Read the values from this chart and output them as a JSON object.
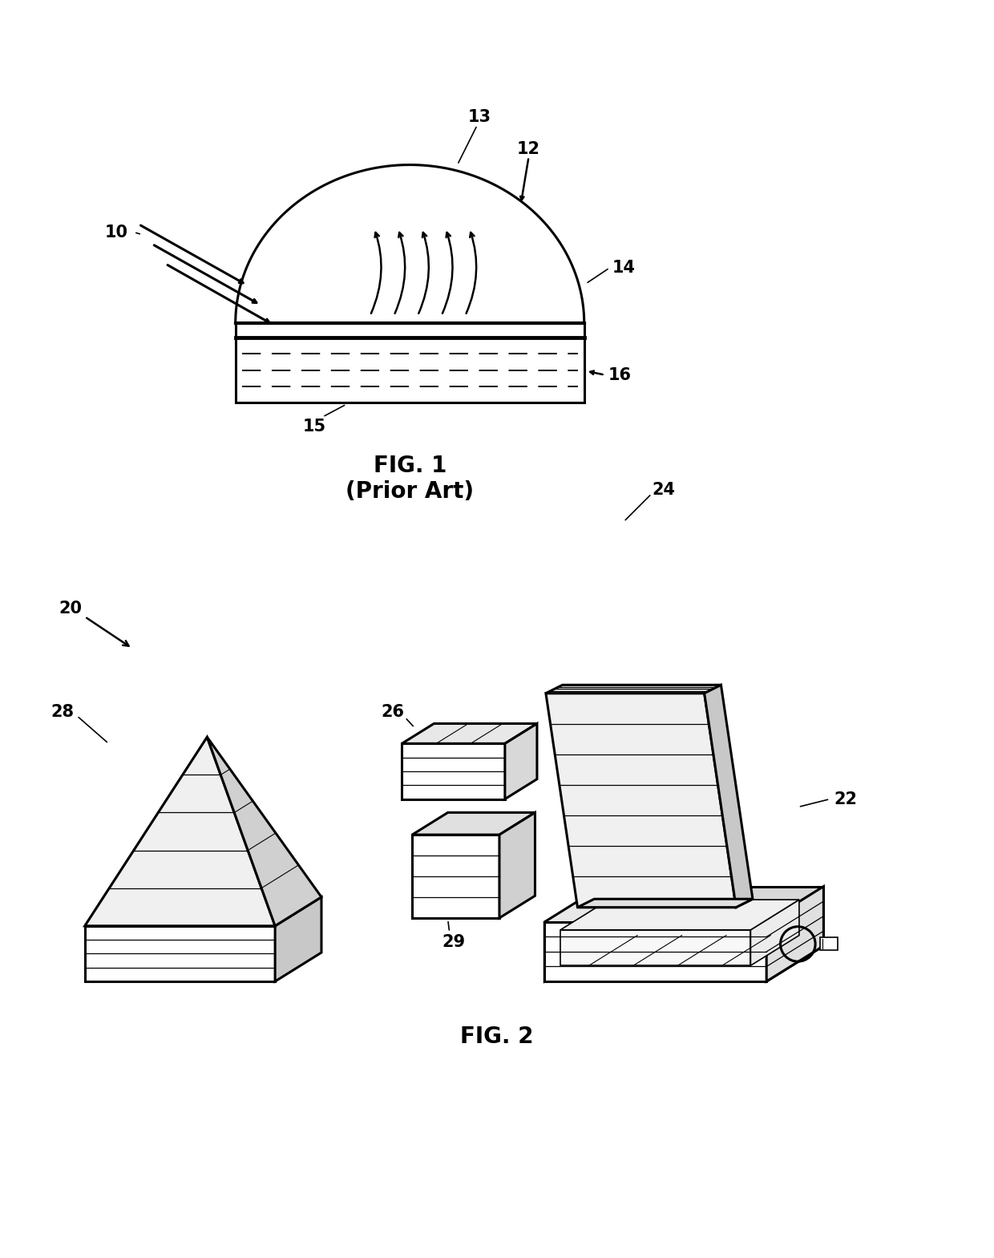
{
  "fig1_caption": "FIG. 1",
  "fig1_subcaption": "(Prior Art)",
  "fig2_caption": "FIG. 2",
  "background_color": "#ffffff",
  "line_color": "#000000",
  "label_fontsize": 15,
  "caption_fontsize": 20
}
